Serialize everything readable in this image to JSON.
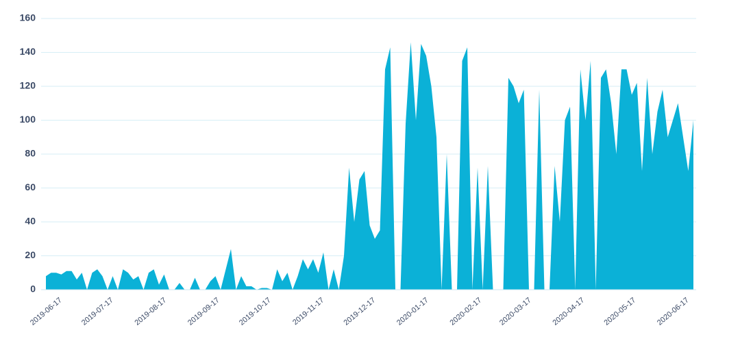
{
  "chart_data": {
    "type": "area",
    "color": "#0bb1d7",
    "grid": true,
    "xlim": [
      "2019-06-17",
      "2020-06-29"
    ],
    "xticks": [
      "2019-06-17",
      "2019-07-17",
      "2019-08-17",
      "2019-09-17",
      "2019-10-17",
      "2019-11-17",
      "2019-12-17",
      "2020-01-17",
      "2020-02-17",
      "2020-03-17",
      "2020-04-17",
      "2020-05-17",
      "2020-06-17"
    ],
    "ylim": [
      0,
      160
    ],
    "yticks": [
      0,
      20,
      40,
      60,
      80,
      100,
      120,
      140,
      160
    ],
    "x": [
      "2019-06-17",
      "2019-06-20",
      "2019-06-23",
      "2019-06-26",
      "2019-06-29",
      "2019-07-02",
      "2019-07-05",
      "2019-07-08",
      "2019-07-11",
      "2019-07-14",
      "2019-07-17",
      "2019-07-20",
      "2019-07-23",
      "2019-07-26",
      "2019-07-29",
      "2019-08-01",
      "2019-08-04",
      "2019-08-07",
      "2019-08-10",
      "2019-08-13",
      "2019-08-16",
      "2019-08-19",
      "2019-08-22",
      "2019-08-25",
      "2019-08-28",
      "2019-08-31",
      "2019-09-03",
      "2019-09-06",
      "2019-09-09",
      "2019-09-12",
      "2019-09-15",
      "2019-09-18",
      "2019-09-21",
      "2019-09-24",
      "2019-09-27",
      "2019-09-30",
      "2019-10-03",
      "2019-10-06",
      "2019-10-09",
      "2019-10-12",
      "2019-10-15",
      "2019-10-18",
      "2019-10-21",
      "2019-10-24",
      "2019-10-27",
      "2019-10-30",
      "2019-11-02",
      "2019-11-05",
      "2019-11-08",
      "2019-11-11",
      "2019-11-14",
      "2019-11-17",
      "2019-11-20",
      "2019-11-23",
      "2019-11-26",
      "2019-11-29",
      "2019-12-02",
      "2019-12-05",
      "2019-12-08",
      "2019-12-11",
      "2019-12-14",
      "2019-12-17",
      "2019-12-20",
      "2019-12-23",
      "2019-12-26",
      "2019-12-29",
      "2020-01-01",
      "2020-01-04",
      "2020-01-07",
      "2020-01-10",
      "2020-01-13",
      "2020-01-16",
      "2020-01-19",
      "2020-01-22",
      "2020-01-25",
      "2020-01-28",
      "2020-01-31",
      "2020-02-03",
      "2020-02-06",
      "2020-02-09",
      "2020-02-12",
      "2020-02-15",
      "2020-02-18",
      "2020-02-21",
      "2020-02-24",
      "2020-02-27",
      "2020-03-01",
      "2020-03-04",
      "2020-03-07",
      "2020-03-10",
      "2020-03-13",
      "2020-03-16",
      "2020-03-19",
      "2020-03-22",
      "2020-03-25",
      "2020-03-28",
      "2020-03-31",
      "2020-04-03",
      "2020-04-06",
      "2020-04-09",
      "2020-04-12",
      "2020-04-15",
      "2020-04-18",
      "2020-04-21",
      "2020-04-24",
      "2020-04-27",
      "2020-04-30",
      "2020-05-03",
      "2020-05-06",
      "2020-05-09",
      "2020-05-12",
      "2020-05-15",
      "2020-05-18",
      "2020-05-21",
      "2020-05-24",
      "2020-05-27",
      "2020-05-30",
      "2020-06-02",
      "2020-06-05",
      "2020-06-08",
      "2020-06-11",
      "2020-06-14",
      "2020-06-17",
      "2020-06-20",
      "2020-06-23",
      "2020-06-26",
      "2020-06-29"
    ],
    "values": [
      8,
      10,
      10,
      9,
      11,
      11,
      6,
      10,
      0,
      10,
      12,
      8,
      0,
      8,
      0,
      12,
      10,
      6,
      8,
      0,
      10,
      12,
      3,
      9,
      0,
      0,
      4,
      0,
      0,
      7,
      0,
      0,
      5,
      8,
      0,
      12,
      24,
      0,
      8,
      2,
      2,
      0,
      1,
      1,
      0,
      12,
      5,
      10,
      0,
      8,
      18,
      12,
      18,
      10,
      22,
      0,
      12,
      0,
      20,
      72,
      40,
      65,
      70,
      38,
      30,
      35,
      130,
      143,
      0,
      0,
      98,
      146,
      100,
      145,
      138,
      120,
      90,
      0,
      80,
      0,
      0,
      135,
      143,
      0,
      72,
      0,
      73,
      0,
      0,
      0,
      125,
      120,
      110,
      118,
      0,
      0,
      118,
      0,
      0,
      73,
      40,
      100,
      108,
      0,
      130,
      100,
      135,
      0,
      125,
      130,
      110,
      80,
      130,
      130,
      115,
      122,
      70,
      125,
      80,
      105,
      118,
      90,
      100,
      110,
      90,
      70,
      100
    ]
  }
}
